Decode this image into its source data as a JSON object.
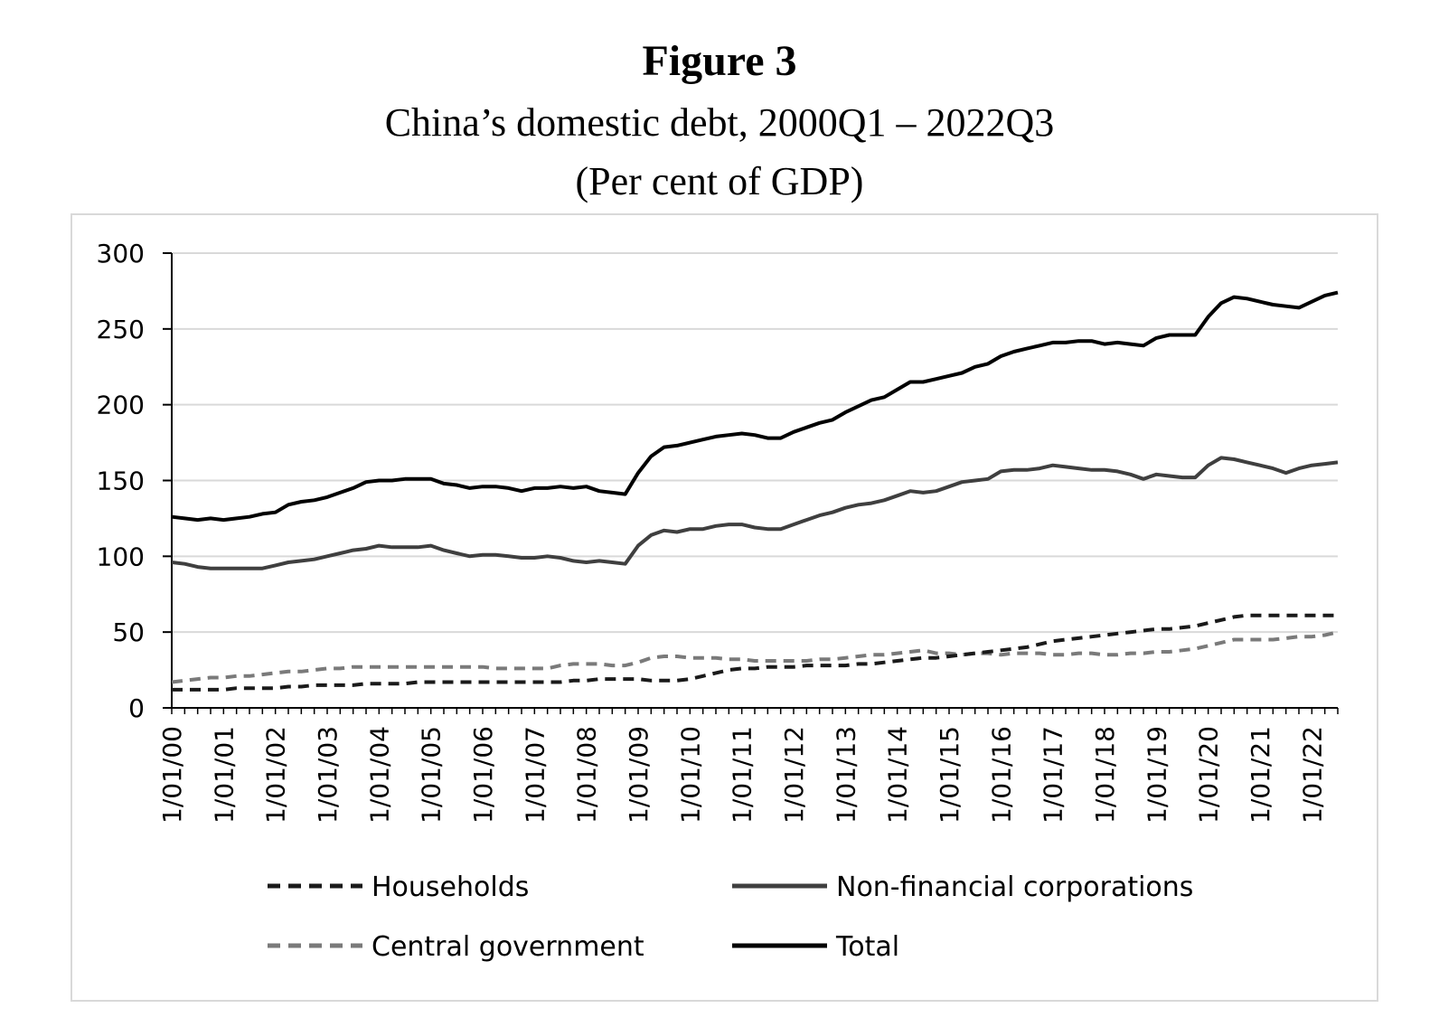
{
  "figure_label": "Figure 3",
  "chart_data": {
    "type": "line",
    "title": "China’s domestic debt, 2000Q1 – 2022Q3",
    "subtitle": "(Per cent of GDP)",
    "xlabel": "",
    "ylabel": "",
    "ylim": [
      0,
      300
    ],
    "yticks": [
      0,
      50,
      100,
      150,
      200,
      250,
      300
    ],
    "grid": "horizontal",
    "legend_placement": "bottom",
    "x_start": "2000Q1",
    "x_end": "2022Q3",
    "frequency": "quarterly",
    "xtick_labels": [
      "1/01/00",
      "1/01/01",
      "1/01/02",
      "1/01/03",
      "1/01/04",
      "1/01/05",
      "1/01/06",
      "1/01/07",
      "1/01/08",
      "1/01/09",
      "1/01/10",
      "1/01/11",
      "1/01/12",
      "1/01/13",
      "1/01/14",
      "1/01/15",
      "1/01/16",
      "1/01/17",
      "1/01/18",
      "1/01/19",
      "1/01/20",
      "1/01/21",
      "1/01/22"
    ],
    "series": [
      {
        "name": "Households",
        "color": "#1a1a1a",
        "style": "dashed",
        "values": [
          12,
          12,
          12,
          12,
          12,
          13,
          13,
          13,
          13,
          14,
          14,
          15,
          15,
          15,
          15,
          16,
          16,
          16,
          16,
          17,
          17,
          17,
          17,
          17,
          17,
          17,
          17,
          17,
          17,
          17,
          17,
          18,
          18,
          19,
          19,
          19,
          19,
          18,
          18,
          18,
          19,
          21,
          23,
          25,
          26,
          26,
          27,
          27,
          27,
          28,
          28,
          28,
          28,
          29,
          29,
          30,
          31,
          32,
          33,
          33,
          34,
          35,
          36,
          37,
          38,
          39,
          40,
          42,
          44,
          45,
          46,
          47,
          48,
          49,
          50,
          51,
          52,
          52,
          53,
          54,
          56,
          58,
          60,
          61,
          61,
          61,
          61,
          61,
          61,
          61,
          61
        ]
      },
      {
        "name": "Non-financial corporations",
        "color": "#3f3f3f",
        "style": "solid",
        "values": [
          96,
          95,
          93,
          92,
          92,
          92,
          92,
          92,
          94,
          96,
          97,
          98,
          100,
          102,
          104,
          105,
          107,
          106,
          106,
          106,
          107,
          104,
          102,
          100,
          101,
          101,
          100,
          99,
          99,
          100,
          99,
          97,
          96,
          97,
          96,
          95,
          107,
          114,
          117,
          116,
          118,
          118,
          120,
          121,
          121,
          119,
          118,
          118,
          121,
          124,
          127,
          129,
          132,
          134,
          135,
          137,
          140,
          143,
          142,
          143,
          146,
          149,
          150,
          151,
          156,
          157,
          157,
          158,
          160,
          159,
          158,
          157,
          157,
          156,
          154,
          151,
          154,
          153,
          152,
          152,
          160,
          165,
          164,
          162,
          160,
          158,
          155,
          158,
          160,
          161,
          162
        ]
      },
      {
        "name": "Central government",
        "color": "#7a7a7a",
        "style": "dashed",
        "values": [
          17,
          18,
          19,
          20,
          20,
          21,
          21,
          22,
          23,
          24,
          24,
          25,
          26,
          26,
          27,
          27,
          27,
          27,
          27,
          27,
          27,
          27,
          27,
          27,
          27,
          26,
          26,
          26,
          26,
          26,
          28,
          29,
          29,
          29,
          28,
          28,
          30,
          33,
          34,
          34,
          33,
          33,
          33,
          32,
          32,
          31,
          31,
          31,
          31,
          31,
          32,
          32,
          33,
          34,
          35,
          35,
          36,
          37,
          38,
          36,
          36,
          35,
          36,
          36,
          35,
          36,
          36,
          36,
          35,
          35,
          36,
          36,
          35,
          35,
          36,
          36,
          37,
          37,
          38,
          39,
          41,
          43,
          45,
          45,
          45,
          45,
          46,
          47,
          47,
          48,
          50
        ]
      },
      {
        "name": "Total",
        "color": "#000000",
        "style": "solid",
        "values": [
          126,
          125,
          124,
          125,
          124,
          125,
          126,
          128,
          129,
          134,
          136,
          137,
          139,
          142,
          145,
          149,
          150,
          150,
          151,
          151,
          151,
          148,
          147,
          145,
          146,
          146,
          145,
          143,
          145,
          145,
          146,
          145,
          146,
          143,
          142,
          141,
          155,
          166,
          172,
          173,
          175,
          177,
          179,
          180,
          181,
          180,
          178,
          178,
          182,
          185,
          188,
          190,
          195,
          199,
          203,
          205,
          210,
          215,
          215,
          217,
          219,
          221,
          225,
          227,
          232,
          235,
          237,
          239,
          241,
          241,
          242,
          242,
          240,
          241,
          240,
          239,
          244,
          246,
          246,
          246,
          258,
          267,
          271,
          270,
          268,
          266,
          265,
          264,
          268,
          272,
          274
        ]
      }
    ]
  }
}
